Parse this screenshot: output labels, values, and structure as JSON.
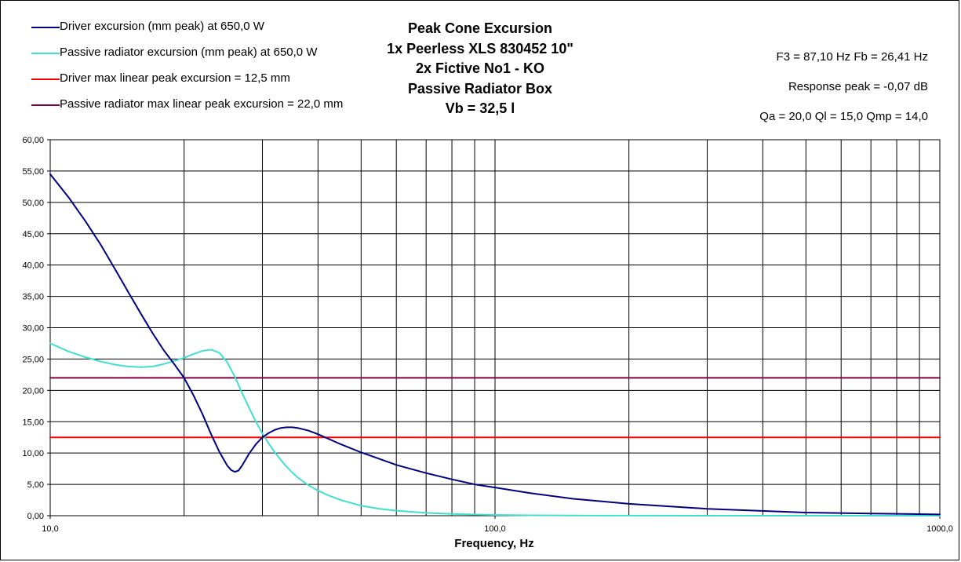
{
  "title_lines": [
    "Peak Cone Excursion",
    "1x Peerless XLS 830452 10\"",
    "2x Fictive No1 - KO",
    "Passive Radiator Box",
    "Vb = 32,5 l"
  ],
  "params": {
    "f3_fb": "F3 = 87,10 Hz  Fb = 26,41 Hz",
    "response_peak": "Response peak = -0,07 dB",
    "q_values": "Qa = 20,0  Ql = 15,0  Qmp = 14,0"
  },
  "colors": {
    "driver": "#000080",
    "passive": "#40E0D0",
    "driver_max": "#FF0000",
    "passive_max": "#800040"
  },
  "legend": [
    {
      "label": "Driver excursion (mm peak) at 650,0 W",
      "color": "#000080"
    },
    {
      "label": "Passive radiator excursion (mm peak) at 650,0 W",
      "color": "#40E0D0"
    },
    {
      "label": "Driver max linear peak excursion = 12,5 mm",
      "color": "#FF0000"
    },
    {
      "label": "Passive radiator max linear peak excursion = 22,0 mm",
      "color": "#800040"
    }
  ],
  "chart_data": {
    "type": "line",
    "x_scale": "log",
    "xlim": [
      10,
      1000
    ],
    "ylim": [
      0,
      60
    ],
    "xlabel": "Frequency, Hz",
    "ylabel": "",
    "grid": true,
    "legend_position": "top-left",
    "x_tick_labels": [
      "10,0",
      "100,0",
      "1000,0"
    ],
    "y_tick_labels": [
      "0,00",
      "5,00",
      "10,00",
      "15,00",
      "20,00",
      "25,00",
      "30,00",
      "35,00",
      "40,00",
      "45,00",
      "50,00",
      "55,00",
      "60,00"
    ],
    "series": [
      {
        "name": "Driver excursion (mm peak) at 650,0 W",
        "x": [
          10,
          11,
          12,
          13,
          14,
          15,
          16,
          17,
          18,
          19,
          20,
          21,
          22,
          23,
          24,
          25,
          25.5,
          26,
          26.5,
          27,
          28,
          29,
          30,
          31,
          32,
          33,
          34,
          35,
          36,
          38,
          40,
          45,
          50,
          60,
          70,
          80,
          90,
          100,
          120,
          150,
          200,
          300,
          500,
          700,
          1000
        ],
        "y": [
          54.5,
          50.8,
          47.0,
          43.2,
          39.3,
          35.6,
          32.2,
          29.1,
          26.4,
          24.2,
          22.0,
          19.2,
          16.2,
          13.0,
          10.2,
          8.0,
          7.3,
          7.0,
          7.2,
          8.0,
          9.9,
          11.4,
          12.5,
          13.2,
          13.7,
          14.0,
          14.1,
          14.1,
          14.0,
          13.6,
          13.0,
          11.4,
          10.1,
          8.1,
          6.8,
          5.8,
          5.0,
          4.5,
          3.6,
          2.7,
          1.9,
          1.1,
          0.5,
          0.35,
          0.2
        ]
      },
      {
        "name": "Passive radiator excursion (mm peak) at 650,0 W",
        "x": [
          10,
          11,
          12,
          13,
          14,
          15,
          16,
          17,
          18,
          19,
          20,
          21,
          22,
          23,
          24,
          25,
          26,
          27,
          28,
          29,
          30,
          31,
          32,
          33,
          34,
          35,
          36,
          38,
          40,
          42,
          45,
          50,
          55,
          60,
          70,
          80,
          90,
          100,
          120,
          150,
          200,
          1000
        ],
        "y": [
          27.5,
          26.2,
          25.3,
          24.6,
          24.1,
          23.8,
          23.7,
          23.8,
          24.2,
          24.7,
          25.2,
          25.8,
          26.3,
          26.5,
          26.0,
          24.5,
          22.2,
          19.6,
          17.2,
          15.0,
          13.1,
          11.5,
          10.1,
          8.9,
          7.8,
          6.9,
          6.1,
          4.9,
          4.0,
          3.3,
          2.5,
          1.6,
          1.1,
          0.8,
          0.45,
          0.28,
          0.18,
          0.12,
          0.06,
          0.03,
          0.01,
          0.0
        ]
      },
      {
        "name": "Driver max linear peak excursion = 12,5 mm",
        "x": [
          10,
          1000
        ],
        "y": [
          12.5,
          12.5
        ]
      },
      {
        "name": "Passive radiator max linear peak excursion = 22,0 mm",
        "x": [
          10,
          1000
        ],
        "y": [
          22.0,
          22.0
        ]
      }
    ]
  }
}
